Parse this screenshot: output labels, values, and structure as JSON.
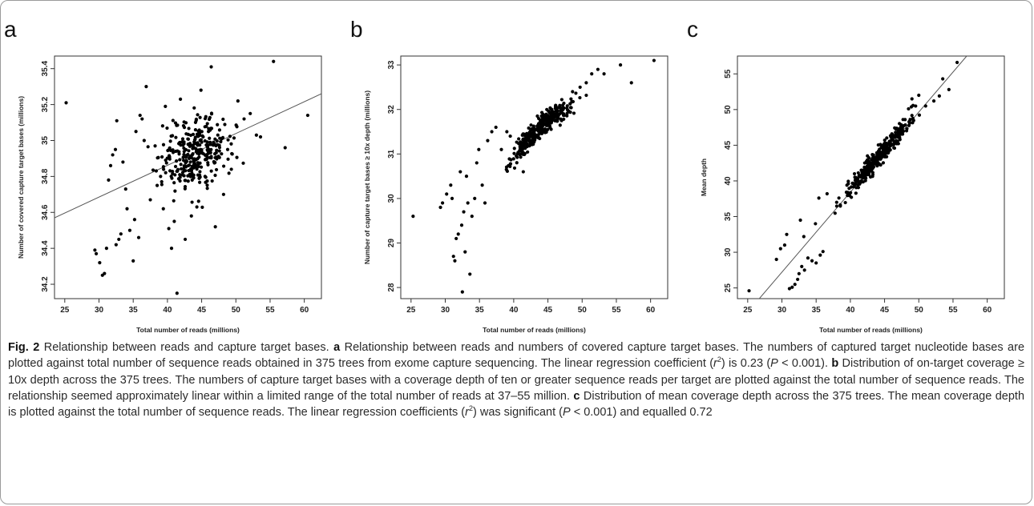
{
  "figure": {
    "panels": [
      {
        "letter": "a",
        "xlabel": "Total number of reads (millions)",
        "ylabel": "Number of covered capture target bases (millions)"
      },
      {
        "letter": "b",
        "xlabel": "Total number of reads (millions)",
        "ylabel": "Number of capture target bases ≥ 10x depth (millions)"
      },
      {
        "letter": "c",
        "xlabel": "Total number of reads (millions)",
        "ylabel": "Mean depth"
      }
    ]
  },
  "caption": {
    "fig_label": "Fig. 2",
    "title": "Relationship between reads and capture target bases.",
    "a_label": "a",
    "a_text": "Relationship between reads and numbers of covered capture target bases. The numbers of captured target nucleotide bases are plotted against total number of sequence reads obtained in 375 trees from exome capture sequencing. The linear regression coefficient (",
    "a_r": "r",
    "a_sup": "2",
    "a_mid": ") is 0.23 (",
    "a_p": "P",
    "a_end": " < 0.001).",
    "b_label": "b",
    "b_text": "Distribution of on-target coverage ≥ 10x depth across the 375 trees. The numbers of capture target bases with a coverage depth of ten or greater sequence reads per target are plotted against the total number of sequence reads. The relationship seemed approximately linear within a limited range of the total number of reads at 37–55 million.",
    "c_label": "c",
    "c_text": "Distribution of mean coverage depth across the 375 trees. The mean coverage depth is plotted against the total number of sequence reads. The linear regression coefficients (",
    "c_r": "r",
    "c_sup": "2",
    "c_mid": ") was significant (",
    "c_p": "P",
    "c_end": " < 0.001) and equalled 0.72"
  },
  "chart_data": [
    {
      "type": "scatter",
      "panel": "a",
      "xlabel": "Total number of reads (millions)",
      "ylabel": "Number of covered capture target bases (millions)",
      "xlim": [
        23.5,
        62.5
      ],
      "ylim": [
        34.12,
        35.47
      ],
      "xticks": [
        25,
        30,
        35,
        40,
        45,
        50,
        55,
        60
      ],
      "yticks": [
        34.2,
        34.4,
        34.6,
        34.8,
        35.0,
        35.2,
        35.4
      ],
      "n_points": 375,
      "regression_line": {
        "x": [
          23.5,
          62.5
        ],
        "y": [
          34.57,
          35.26
        ]
      },
      "points": [
        [
          25.2,
          35.21
        ],
        [
          29.4,
          34.39
        ],
        [
          29.6,
          34.37
        ],
        [
          30.1,
          34.32
        ],
        [
          30.5,
          34.25
        ],
        [
          30.8,
          34.26
        ],
        [
          31.1,
          34.4
        ],
        [
          31.4,
          34.78
        ],
        [
          31.7,
          34.86
        ],
        [
          32.0,
          34.92
        ],
        [
          32.4,
          34.95
        ],
        [
          32.6,
          35.11
        ],
        [
          32.5,
          34.42
        ],
        [
          32.9,
          34.45
        ],
        [
          33.2,
          34.48
        ],
        [
          33.5,
          34.88
        ],
        [
          33.9,
          34.73
        ],
        [
          34.1,
          34.62
        ],
        [
          34.5,
          34.5
        ],
        [
          35.0,
          34.33
        ],
        [
          35.2,
          34.56
        ],
        [
          35.4,
          35.05
        ],
        [
          35.8,
          34.46
        ],
        [
          36.0,
          35.14
        ],
        [
          36.3,
          35.12
        ],
        [
          36.6,
          35.0
        ],
        [
          36.9,
          35.3
        ],
        [
          37.5,
          34.67
        ],
        [
          38.2,
          34.97
        ],
        [
          38.5,
          34.75
        ],
        [
          39.0,
          34.8
        ],
        [
          39.4,
          34.62
        ],
        [
          39.7,
          35.19
        ],
        [
          40.2,
          34.51
        ],
        [
          40.6,
          34.4
        ],
        [
          41.0,
          34.55
        ],
        [
          41.4,
          34.15
        ],
        [
          41.9,
          35.23
        ],
        [
          42.6,
          34.45
        ],
        [
          43.5,
          34.58
        ],
        [
          44.3,
          34.63
        ],
        [
          44.9,
          35.28
        ],
        [
          45.5,
          34.8
        ],
        [
          46.0,
          35.05
        ],
        [
          46.4,
          35.41
        ],
        [
          47.0,
          34.52
        ],
        [
          48.2,
          34.7
        ],
        [
          48.8,
          34.95
        ],
        [
          50.3,
          35.22
        ],
        [
          51.2,
          35.12
        ],
        [
          52.1,
          35.15
        ],
        [
          53.0,
          35.03
        ],
        [
          53.6,
          35.02
        ],
        [
          55.5,
          35.44
        ],
        [
          57.2,
          34.96
        ],
        [
          60.5,
          35.14
        ]
      ]
    },
    {
      "type": "scatter",
      "panel": "b",
      "xlabel": "Total number of reads (millions)",
      "ylabel": "Number of capture target bases ≥ 10x depth (millions)",
      "xlim": [
        23.5,
        62.5
      ],
      "ylim": [
        27.75,
        33.2
      ],
      "xticks": [
        25,
        30,
        35,
        40,
        45,
        50,
        55,
        60
      ],
      "yticks": [
        28,
        29,
        30,
        31,
        32,
        33
      ],
      "n_points": 375,
      "points": [
        [
          25.3,
          29.6
        ],
        [
          29.3,
          29.8
        ],
        [
          29.6,
          29.9
        ],
        [
          30.2,
          30.1
        ],
        [
          30.8,
          30.3
        ],
        [
          31.0,
          30.0
        ],
        [
          31.2,
          28.7
        ],
        [
          31.4,
          28.6
        ],
        [
          31.6,
          29.1
        ],
        [
          31.9,
          29.2
        ],
        [
          32.2,
          30.6
        ],
        [
          32.4,
          29.4
        ],
        [
          32.5,
          27.9
        ],
        [
          32.7,
          29.7
        ],
        [
          32.9,
          28.8
        ],
        [
          33.1,
          30.5
        ],
        [
          33.3,
          29.9
        ],
        [
          33.6,
          28.3
        ],
        [
          33.9,
          29.6
        ],
        [
          34.3,
          30.0
        ],
        [
          34.6,
          30.8
        ],
        [
          34.9,
          31.1
        ],
        [
          35.4,
          30.3
        ],
        [
          35.8,
          29.9
        ],
        [
          36.2,
          31.3
        ],
        [
          36.8,
          31.5
        ],
        [
          37.4,
          31.6
        ],
        [
          38.2,
          31.1
        ],
        [
          39.0,
          31.5
        ],
        [
          39.5,
          31.4
        ],
        [
          41.4,
          30.6
        ],
        [
          42.4,
          31.2
        ],
        [
          44.0,
          31.5
        ],
        [
          45.5,
          31.7
        ],
        [
          47.3,
          31.9
        ],
        [
          48.6,
          32.4
        ],
        [
          49.7,
          32.5
        ],
        [
          50.6,
          32.6
        ],
        [
          51.4,
          32.8
        ],
        [
          52.3,
          32.9
        ],
        [
          53.2,
          32.8
        ],
        [
          55.6,
          33.0
        ],
        [
          57.2,
          32.6
        ],
        [
          60.5,
          33.1
        ]
      ]
    },
    {
      "type": "scatter",
      "panel": "c",
      "xlabel": "Total number of reads (millions)",
      "ylabel": "Mean depth",
      "xlim": [
        23.5,
        62.5
      ],
      "ylim": [
        23.5,
        57.5
      ],
      "xticks": [
        25,
        30,
        35,
        40,
        45,
        50,
        55,
        60
      ],
      "yticks": [
        25,
        30,
        35,
        40,
        45,
        50,
        55
      ],
      "n_points": 375,
      "regression_line": {
        "x": [
          25.8,
          57.0
        ],
        "y": [
          22.5,
          57.5
        ]
      },
      "points": [
        [
          25.2,
          24.6
        ],
        [
          29.2,
          29.0
        ],
        [
          29.8,
          30.5
        ],
        [
          30.4,
          31.0
        ],
        [
          30.7,
          32.5
        ],
        [
          31.1,
          24.9
        ],
        [
          31.5,
          25.1
        ],
        [
          31.9,
          25.5
        ],
        [
          32.3,
          26.2
        ],
        [
          32.5,
          27.0
        ],
        [
          32.9,
          28.0
        ],
        [
          33.3,
          27.5
        ],
        [
          33.8,
          29.2
        ],
        [
          34.4,
          28.8
        ],
        [
          35.0,
          28.5
        ],
        [
          35.6,
          29.6
        ],
        [
          36.0,
          30.1
        ],
        [
          32.7,
          34.5
        ],
        [
          33.2,
          32.2
        ],
        [
          34.9,
          34.0
        ],
        [
          35.4,
          37.6
        ],
        [
          36.6,
          38.2
        ],
        [
          38.0,
          37.0
        ],
        [
          39.5,
          39.4
        ],
        [
          40.6,
          41.0
        ],
        [
          41.6,
          41.5
        ],
        [
          42.5,
          43.5
        ],
        [
          43.5,
          43.0
        ],
        [
          44.5,
          45.0
        ],
        [
          45.8,
          45.5
        ],
        [
          46.6,
          46.8
        ],
        [
          47.7,
          48.6
        ],
        [
          48.5,
          50.1
        ],
        [
          49.0,
          51.5
        ],
        [
          50.0,
          52.0
        ],
        [
          51.0,
          50.5
        ],
        [
          52.2,
          51.2
        ],
        [
          53.0,
          51.9
        ],
        [
          53.5,
          54.3
        ],
        [
          54.4,
          52.8
        ],
        [
          55.6,
          56.6
        ]
      ]
    }
  ]
}
